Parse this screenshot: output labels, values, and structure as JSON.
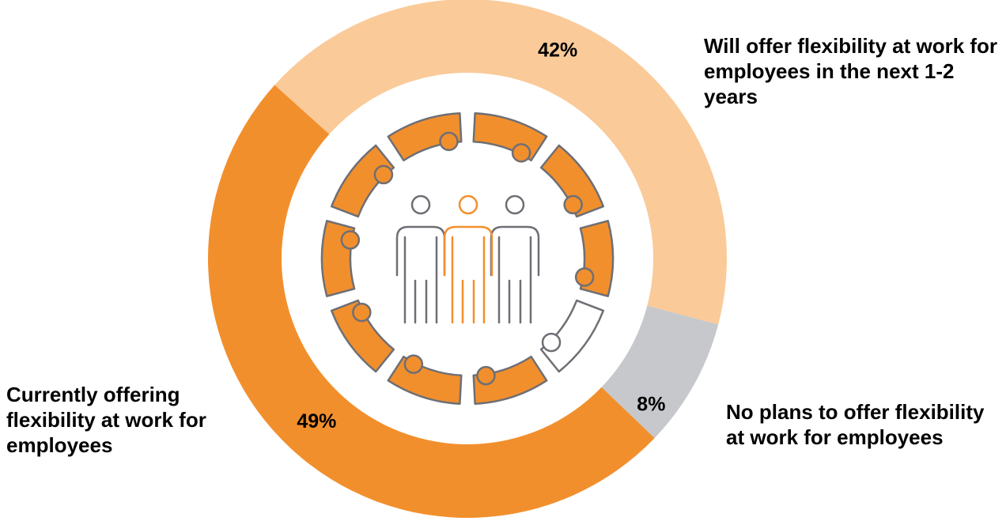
{
  "chart_data": {
    "type": "pie",
    "title": "",
    "series": [
      {
        "name": "",
        "labels": [
          "Will offer flexibility at work for employees in the next 1-2 years",
          "No plans to offer flexibility at work for employees",
          "Currently offering flexibility at work for employees"
        ],
        "values": [
          42,
          8,
          49
        ],
        "value_labels": [
          "42%",
          "8%",
          "49%"
        ],
        "colors": [
          "#FACA99",
          "#C7C8CC",
          "#F28F2D"
        ]
      }
    ],
    "legend": "labels beside slices",
    "style": "donut"
  },
  "labels": {
    "future": "Will offer flexibility at work for employees in the next 1-2 years",
    "current": "Currently offering flexibility at work for employees",
    "none": "No plans to offer flexibility at work for employees"
  },
  "icon": {
    "name": "meeting-table-icon",
    "colors": {
      "seat": "#F28F2D",
      "outline": "#6E6F75",
      "center_person": "#F28F2D",
      "side_people": "#6E6F75"
    }
  }
}
